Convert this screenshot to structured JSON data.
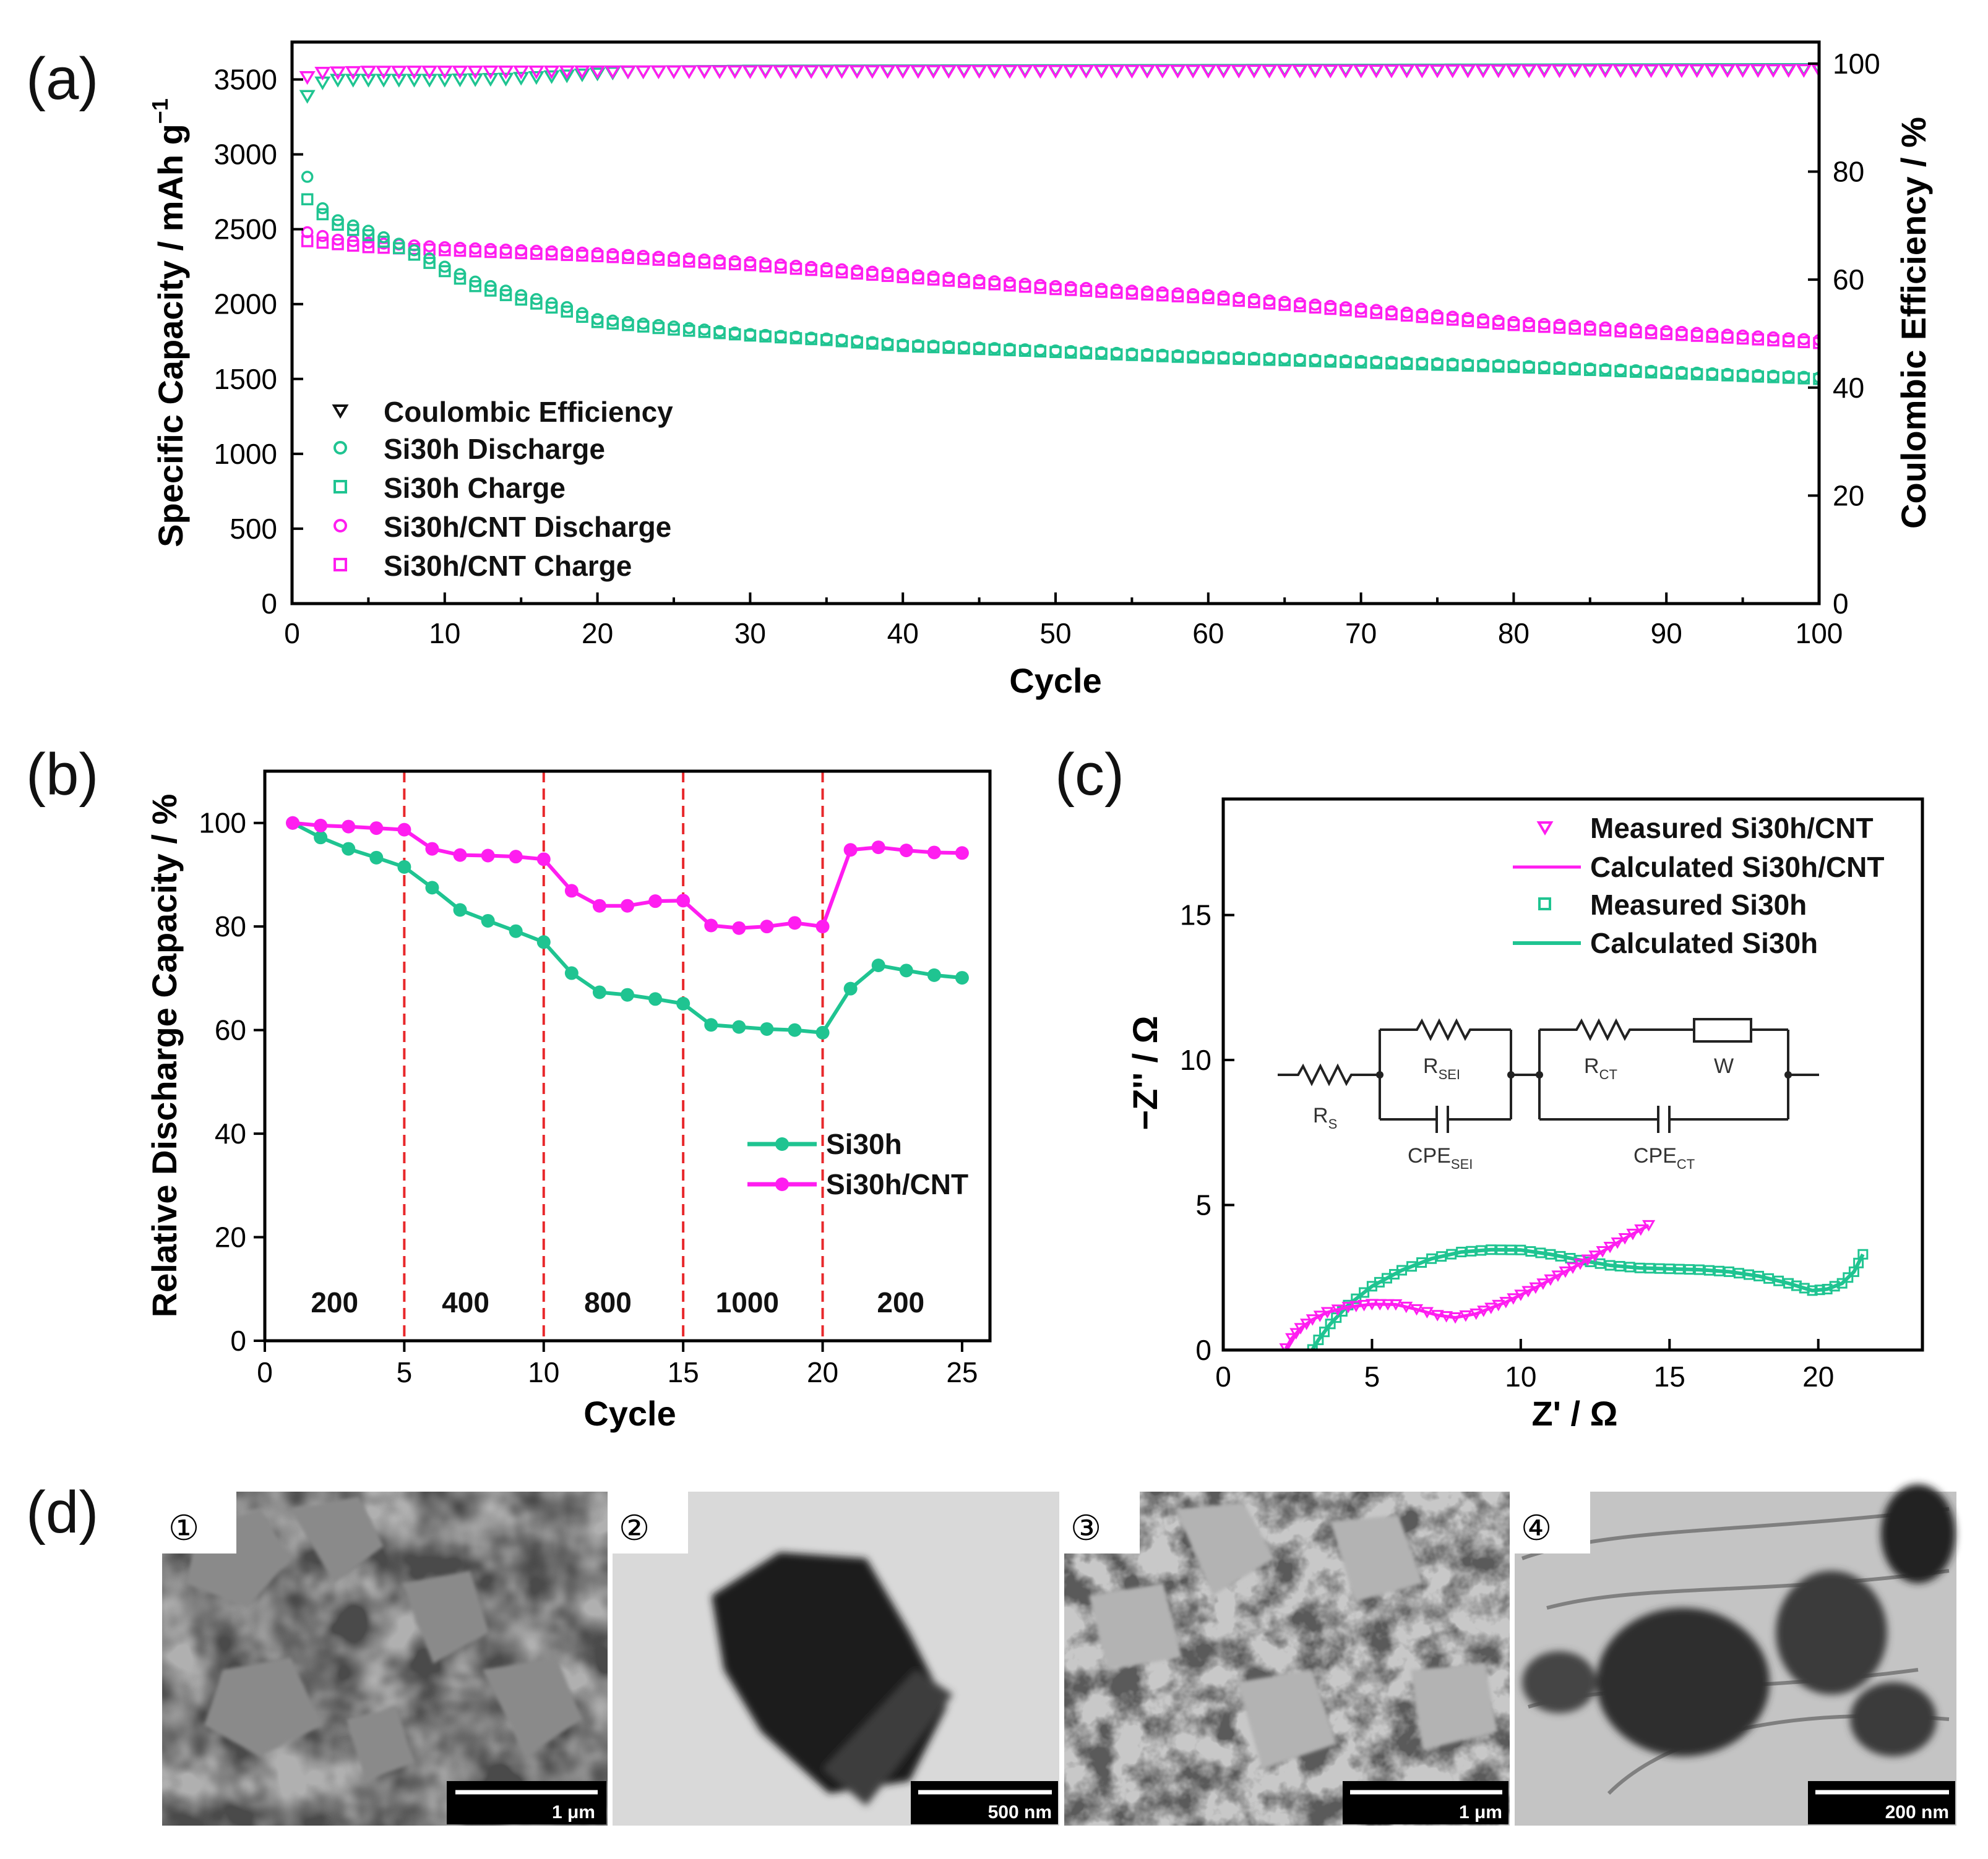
{
  "colors": {
    "green": "#1fc491",
    "magenta": "#ff1df0",
    "red": "#e8282b",
    "black": "#000000"
  },
  "panels": {
    "a": {
      "label": "(a)"
    },
    "b": {
      "label": "(b)"
    },
    "c": {
      "label": "(c)"
    },
    "d": {
      "label": "(d)"
    }
  },
  "chart_data": [
    {
      "id": "a",
      "type": "scatter",
      "xlabel": "Cycle",
      "ylabel": "Specific Capacity / mAh g",
      "ylabel_sup": "−1",
      "y2label": "Coulombic Efficiency / %",
      "xlim": [
        0,
        100
      ],
      "ylim": [
        0,
        3750
      ],
      "y2lim": [
        0,
        104
      ],
      "xticks": [
        0,
        10,
        20,
        30,
        40,
        50,
        60,
        70,
        80,
        90,
        100
      ],
      "yticks": [
        0,
        500,
        1000,
        1500,
        2000,
        2500,
        3000,
        3500
      ],
      "y2ticks": [
        0,
        20,
        40,
        60,
        80,
        100
      ],
      "legend": [
        "Coulombic Efficiency",
        "Si30h Discharge",
        "Si30h Charge",
        "Si30h/CNT Discharge",
        "Si30h/CNT Charge"
      ],
      "legend_position": "bottom-left",
      "anchors": {
        "si30h_discharge": [
          [
            1,
            2850
          ],
          [
            2,
            2640
          ],
          [
            3,
            2560
          ],
          [
            5,
            2490
          ],
          [
            8,
            2360
          ],
          [
            10,
            2250
          ],
          [
            12,
            2150
          ],
          [
            15,
            2060
          ],
          [
            18,
            1980
          ],
          [
            20,
            1900
          ],
          [
            25,
            1850
          ],
          [
            30,
            1800
          ],
          [
            35,
            1770
          ],
          [
            40,
            1730
          ],
          [
            50,
            1690
          ],
          [
            60,
            1650
          ],
          [
            70,
            1620
          ],
          [
            80,
            1590
          ],
          [
            90,
            1550
          ],
          [
            100,
            1510
          ]
        ],
        "si30h_charge": [
          [
            1,
            2700
          ],
          [
            2,
            2600
          ],
          [
            3,
            2530
          ],
          [
            5,
            2460
          ],
          [
            8,
            2330
          ],
          [
            10,
            2220
          ],
          [
            12,
            2120
          ],
          [
            15,
            2030
          ],
          [
            18,
            1950
          ],
          [
            20,
            1880
          ],
          [
            25,
            1830
          ],
          [
            30,
            1790
          ],
          [
            35,
            1760
          ],
          [
            40,
            1720
          ],
          [
            50,
            1680
          ],
          [
            60,
            1640
          ],
          [
            70,
            1610
          ],
          [
            80,
            1580
          ],
          [
            90,
            1540
          ],
          [
            100,
            1500
          ]
        ],
        "cnt_discharge": [
          [
            1,
            2480
          ],
          [
            3,
            2430
          ],
          [
            5,
            2410
          ],
          [
            10,
            2380
          ],
          [
            20,
            2340
          ],
          [
            30,
            2280
          ],
          [
            40,
            2200
          ],
          [
            50,
            2120
          ],
          [
            60,
            2060
          ],
          [
            70,
            1970
          ],
          [
            80,
            1880
          ],
          [
            90,
            1820
          ],
          [
            100,
            1760
          ]
        ],
        "cnt_charge": [
          [
            1,
            2420
          ],
          [
            3,
            2400
          ],
          [
            5,
            2380
          ],
          [
            10,
            2360
          ],
          [
            20,
            2320
          ],
          [
            30,
            2260
          ],
          [
            40,
            2180
          ],
          [
            50,
            2100
          ],
          [
            60,
            2040
          ],
          [
            70,
            1950
          ],
          [
            80,
            1860
          ],
          [
            90,
            1800
          ],
          [
            100,
            1740
          ]
        ],
        "ce_si30h": [
          [
            1,
            94
          ],
          [
            2,
            96.5
          ],
          [
            3,
            97
          ],
          [
            6,
            97
          ],
          [
            10,
            97
          ],
          [
            14,
            97.2
          ],
          [
            18,
            97.8
          ],
          [
            22,
            98.5
          ],
          [
            30,
            98.7
          ],
          [
            100,
            99
          ]
        ],
        "ce_cnt": [
          [
            1,
            97.5
          ],
          [
            2,
            98.3
          ],
          [
            5,
            98.5
          ],
          [
            100,
            98.8
          ]
        ]
      }
    },
    {
      "id": "b",
      "type": "line",
      "xlabel": "Cycle",
      "ylabel": "Relative Discharge Capacity / %",
      "xlim": [
        0,
        26
      ],
      "ylim": [
        0,
        110
      ],
      "xticks": [
        0,
        5,
        10,
        15,
        20,
        25
      ],
      "yticks": [
        0,
        20,
        40,
        60,
        80,
        100
      ],
      "x": [
        1,
        2,
        3,
        4,
        5,
        6,
        7,
        8,
        9,
        10,
        11,
        12,
        13,
        14,
        15,
        16,
        17,
        18,
        19,
        20,
        21,
        22,
        23,
        24,
        25
      ],
      "series": [
        {
          "name": "Si30h",
          "values": [
            100,
            97.2,
            95.0,
            93.3,
            91.5,
            87.5,
            83.2,
            81.1,
            79.1,
            77.0,
            71.0,
            67.3,
            66.8,
            66.0,
            65.1,
            61.0,
            60.6,
            60.2,
            60.0,
            59.5,
            68.0,
            72.5,
            71.5,
            70.6,
            70.1
          ]
        },
        {
          "name": "Si30h/CNT",
          "values": [
            100,
            99.5,
            99.3,
            99.0,
            98.7,
            95.0,
            93.8,
            93.7,
            93.5,
            93.0,
            86.9,
            84.0,
            84.0,
            84.9,
            85.0,
            80.2,
            79.7,
            80.0,
            80.7,
            80.0,
            94.8,
            95.3,
            94.7,
            94.3,
            94.2
          ]
        }
      ],
      "boundaries": [
        5,
        10,
        15,
        20
      ],
      "segment_labels": [
        {
          "x": 2.5,
          "text": "200"
        },
        {
          "x": 7.2,
          "text": "400"
        },
        {
          "x": 12.3,
          "text": "800"
        },
        {
          "x": 17.3,
          "text": "1000"
        },
        {
          "x": 22.8,
          "text": "200"
        }
      ],
      "legend_position": "right"
    },
    {
      "id": "c",
      "type": "line",
      "xlabel": "Z' / Ω",
      "ylabel": "−Z'' / Ω",
      "xlim": [
        0,
        23.5
      ],
      "ylim": [
        0,
        19
      ],
      "xticks": [
        0,
        5,
        10,
        15,
        20
      ],
      "yticks": [
        0,
        5,
        10,
        15
      ],
      "legend": [
        "Measured Si30h/CNT",
        "Calculated Si30h/CNT",
        "Measured Si30h",
        "Calculated Si30h"
      ],
      "legend_position": "top-right",
      "curves": {
        "si30h_cnt": [
          [
            2.1,
            0.05
          ],
          [
            2.3,
            0.4
          ],
          [
            2.6,
            0.75
          ],
          [
            3.0,
            1.05
          ],
          [
            3.5,
            1.3
          ],
          [
            4.2,
            1.48
          ],
          [
            5.0,
            1.58
          ],
          [
            5.8,
            1.57
          ],
          [
            6.5,
            1.4
          ],
          [
            7.2,
            1.2
          ],
          [
            7.8,
            1.12
          ],
          [
            8.5,
            1.25
          ],
          [
            9.5,
            1.65
          ],
          [
            10.5,
            2.15
          ],
          [
            11.5,
            2.7
          ],
          [
            12.5,
            3.25
          ],
          [
            13.5,
            3.85
          ],
          [
            14.3,
            4.3
          ]
        ],
        "si30h": [
          [
            3.0,
            0.02
          ],
          [
            3.2,
            0.35
          ],
          [
            3.6,
            0.9
          ],
          [
            4.2,
            1.55
          ],
          [
            5.0,
            2.2
          ],
          [
            6.0,
            2.75
          ],
          [
            7.0,
            3.15
          ],
          [
            8.0,
            3.38
          ],
          [
            9.0,
            3.46
          ],
          [
            10.0,
            3.45
          ],
          [
            11.0,
            3.3
          ],
          [
            12.0,
            3.1
          ],
          [
            13.0,
            2.92
          ],
          [
            14.0,
            2.83
          ],
          [
            15.0,
            2.8
          ],
          [
            16.0,
            2.77
          ],
          [
            17.0,
            2.7
          ],
          [
            18.0,
            2.55
          ],
          [
            19.0,
            2.3
          ],
          [
            19.8,
            2.05
          ],
          [
            20.3,
            2.1
          ],
          [
            20.8,
            2.3
          ],
          [
            21.2,
            2.7
          ],
          [
            21.5,
            3.3
          ]
        ]
      },
      "circuit": {
        "rs": "R",
        "rs_sub": "S",
        "rsei": "R",
        "rsei_sub": "SEI",
        "cpesei": "CPE",
        "cpesei_sub": "SEI",
        "rct": "R",
        "rct_sub": "CT",
        "w": "W",
        "cpect": "CPE",
        "cpect_sub": "CT"
      }
    }
  ],
  "images": [
    {
      "label": "①",
      "scale": "1 μm"
    },
    {
      "label": "②",
      "scale": "500 nm"
    },
    {
      "label": "③",
      "scale": "1 μm"
    },
    {
      "label": "④",
      "scale": "200 nm"
    }
  ]
}
